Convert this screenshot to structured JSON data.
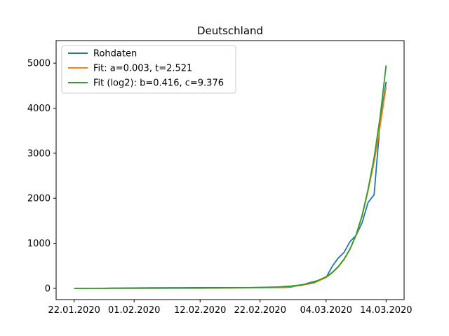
{
  "chart_data": {
    "type": "line",
    "title": "Deutschland",
    "xlabel": "",
    "ylabel": "",
    "x_tick_labels": [
      "22.01.2020",
      "01.02.2020",
      "12.02.2020",
      "22.02.2020",
      "04.03.2020",
      "14.03.2020"
    ],
    "x_tick_dates": [
      "2020-01-22",
      "2020-02-01",
      "2020-02-12",
      "2020-02-22",
      "2020-03-04",
      "2020-03-14"
    ],
    "xlim": [
      "2020-01-19",
      "2020-03-17"
    ],
    "y_ticks": [
      0,
      1000,
      2000,
      3000,
      4000,
      5000
    ],
    "ylim": [
      -250,
      5500
    ],
    "grid": false,
    "legend_position": "top-left",
    "series": [
      {
        "name": "Rohdaten",
        "color": "#1f77b4",
        "points": [
          [
            "2020-01-22",
            0
          ],
          [
            "2020-01-27",
            1
          ],
          [
            "2020-01-28",
            4
          ],
          [
            "2020-02-01",
            8
          ],
          [
            "2020-02-04",
            12
          ],
          [
            "2020-02-12",
            16
          ],
          [
            "2020-02-20",
            16
          ],
          [
            "2020-02-25",
            18
          ],
          [
            "2020-02-26",
            21
          ],
          [
            "2020-02-27",
            26
          ],
          [
            "2020-02-28",
            53
          ],
          [
            "2020-02-29",
            66
          ],
          [
            "2020-03-01",
            117
          ],
          [
            "2020-03-02",
            150
          ],
          [
            "2020-03-03",
            188
          ],
          [
            "2020-03-04",
            240
          ],
          [
            "2020-03-05",
            482
          ],
          [
            "2020-03-06",
            670
          ],
          [
            "2020-03-07",
            799
          ],
          [
            "2020-03-08",
            1040
          ],
          [
            "2020-03-09",
            1176
          ],
          [
            "2020-03-10",
            1457
          ],
          [
            "2020-03-11",
            1908
          ],
          [
            "2020-03-12",
            2078
          ],
          [
            "2020-03-13",
            3675
          ],
          [
            "2020-03-14",
            4585
          ]
        ]
      },
      {
        "name": "Fit: a=0.003, t=2.521",
        "color": "#ff7f0e",
        "points": [
          [
            "2020-01-22",
            0
          ],
          [
            "2020-02-01",
            1
          ],
          [
            "2020-02-12",
            3
          ],
          [
            "2020-02-20",
            10
          ],
          [
            "2020-02-25",
            25
          ],
          [
            "2020-02-27",
            40
          ],
          [
            "2020-02-29",
            70
          ],
          [
            "2020-03-02",
            120
          ],
          [
            "2020-03-04",
            240
          ],
          [
            "2020-03-05",
            340
          ],
          [
            "2020-03-06",
            470
          ],
          [
            "2020-03-07",
            640
          ],
          [
            "2020-03-08",
            870
          ],
          [
            "2020-03-09",
            1180
          ],
          [
            "2020-03-10",
            1600
          ],
          [
            "2020-03-11",
            2170
          ],
          [
            "2020-03-12",
            2800
          ],
          [
            "2020-03-13",
            3600
          ],
          [
            "2020-03-14",
            4480
          ]
        ]
      },
      {
        "name": "Fit (log2): b=0.416, c=9.376",
        "color": "#2ca02c",
        "points": [
          [
            "2020-01-22",
            0
          ],
          [
            "2020-02-01",
            2
          ],
          [
            "2020-02-12",
            6
          ],
          [
            "2020-02-20",
            15
          ],
          [
            "2020-02-25",
            32
          ],
          [
            "2020-02-27",
            48
          ],
          [
            "2020-02-29",
            80
          ],
          [
            "2020-03-02",
            135
          ],
          [
            "2020-03-04",
            255
          ],
          [
            "2020-03-05",
            350
          ],
          [
            "2020-03-06",
            480
          ],
          [
            "2020-03-07",
            650
          ],
          [
            "2020-03-08",
            880
          ],
          [
            "2020-03-09",
            1190
          ],
          [
            "2020-03-10",
            1620
          ],
          [
            "2020-03-11",
            2200
          ],
          [
            "2020-03-12",
            2900
          ],
          [
            "2020-03-13",
            3800
          ],
          [
            "2020-03-14",
            4950
          ]
        ]
      }
    ]
  }
}
